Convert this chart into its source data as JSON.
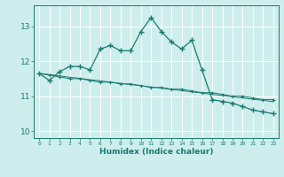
{
  "xlabel": "Humidex (Indice chaleur)",
  "ylabel": "",
  "bg_color": "#ceeeed",
  "grid_color": "#ffffff",
  "line_color": "#1a7a6e",
  "xlim": [
    -0.5,
    23.5
  ],
  "ylim": [
    9.8,
    13.6
  ],
  "yticks": [
    10,
    11,
    12,
    13
  ],
  "xticks": [
    0,
    1,
    2,
    3,
    4,
    5,
    6,
    7,
    8,
    9,
    10,
    11,
    12,
    13,
    14,
    15,
    16,
    17,
    18,
    19,
    20,
    21,
    22,
    23
  ],
  "series": [
    [
      11.65,
      11.45,
      11.7,
      11.85,
      11.85,
      11.75,
      12.35,
      12.45,
      12.3,
      12.3,
      12.85,
      13.25,
      12.85,
      12.55,
      12.35,
      12.6,
      11.75,
      10.9,
      10.85,
      10.8,
      10.7,
      10.6,
      10.55,
      10.5
    ],
    [
      11.65,
      11.6,
      11.55,
      11.5,
      11.5,
      11.45,
      11.4,
      11.4,
      11.35,
      11.35,
      11.3,
      11.25,
      11.25,
      11.2,
      11.2,
      11.15,
      11.1,
      11.1,
      11.05,
      11.0,
      11.0,
      10.95,
      10.9,
      10.9
    ],
    [
      11.65,
      11.62,
      11.58,
      11.54,
      11.51,
      11.47,
      11.44,
      11.4,
      11.37,
      11.33,
      11.3,
      11.26,
      11.23,
      11.19,
      11.16,
      11.12,
      11.09,
      11.05,
      11.02,
      10.98,
      10.95,
      10.91,
      10.88,
      10.84
    ]
  ]
}
